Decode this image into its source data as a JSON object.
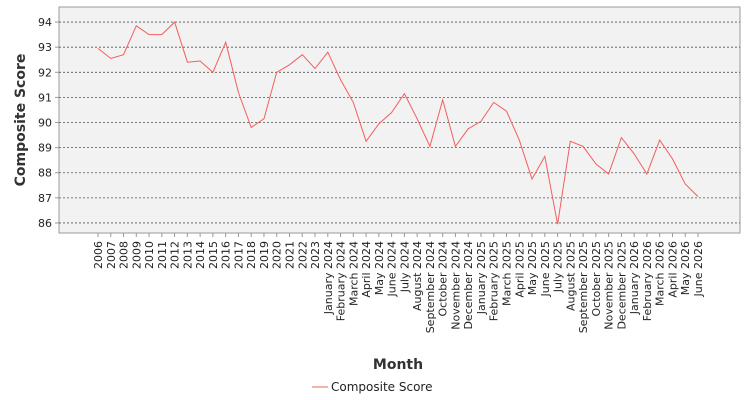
{
  "chart_data": {
    "type": "line",
    "title": "",
    "xlabel": "Month",
    "ylabel": "Composite Score",
    "ylim": [
      85.6,
      94.6
    ],
    "yticks": [
      86,
      87,
      88,
      89,
      90,
      91,
      92,
      93,
      94
    ],
    "grid": "horizontal-dashed",
    "legend_position": "bottom-center",
    "categories": [
      "2006",
      "2007",
      "2008",
      "2009",
      "2010",
      "2011",
      "2012",
      "2013",
      "2014",
      "2015",
      "2016",
      "2017",
      "2018",
      "2019",
      "2020",
      "2021",
      "2022",
      "2023",
      "January 2024",
      "February 2024",
      "March 2024",
      "April 2024",
      "May 2024",
      "June 2024",
      "July 2024",
      "August 2024",
      "September 2024",
      "October 2024",
      "November 2024",
      "December 2024",
      "January 2025",
      "February 2025",
      "March 2025",
      "April 2025",
      "May 2025",
      "June 2025",
      "July 2025",
      "August 2025",
      "September 2025",
      "October 2025",
      "November 2025",
      "December 2025",
      "January 2026",
      "February 2026",
      "March 2026",
      "April 2026",
      "May 2026",
      "June 2026"
    ],
    "series": [
      {
        "name": "Composite Score",
        "color": "#f45d5d",
        "values": [
          92.95,
          92.55,
          92.7,
          93.85,
          93.5,
          93.5,
          94.0,
          92.4,
          92.45,
          92.0,
          93.2,
          91.2,
          89.8,
          90.15,
          92.0,
          92.3,
          92.7,
          92.15,
          92.8,
          91.7,
          90.8,
          89.25,
          89.95,
          90.4,
          91.15,
          90.15,
          89.05,
          90.9,
          89.05,
          89.75,
          90.05,
          90.8,
          90.45,
          89.3,
          87.75,
          88.65,
          85.95,
          89.25,
          89.05,
          88.35,
          87.95,
          89.4,
          88.75,
          87.95,
          89.3,
          88.55,
          87.55,
          87.05
        ]
      }
    ]
  }
}
